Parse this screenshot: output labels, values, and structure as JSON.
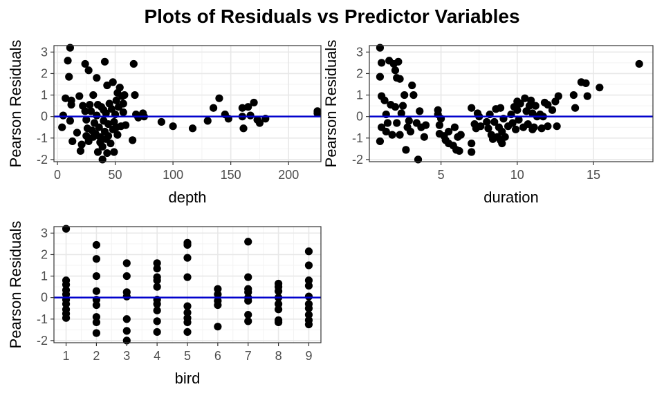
{
  "title": "Plots of Residuals vs Predictor Variables",
  "chart_data": [
    {
      "type": "scatter",
      "xlabel": "depth",
      "ylabel": "Pearson Residuals",
      "xlim": [
        -3,
        228
      ],
      "ylim": [
        -2.1,
        3.3
      ],
      "xticks": [
        0,
        50,
        100,
        150,
        200
      ],
      "yticks": [
        -2,
        -1,
        0,
        1,
        2,
        3
      ],
      "grid": true,
      "reference_line": {
        "y": 0,
        "color": "#0000cc"
      },
      "points": [
        [
          5,
          0.05
        ],
        [
          7,
          0.85
        ],
        [
          4,
          -0.5
        ],
        [
          9,
          2.6
        ],
        [
          11,
          3.2
        ],
        [
          10,
          1.85
        ],
        [
          12,
          0.75
        ],
        [
          12,
          0.55
        ],
        [
          11,
          -0.2
        ],
        [
          13,
          -1.15
        ],
        [
          17,
          -0.75
        ],
        [
          19,
          0.95
        ],
        [
          20,
          -1.6
        ],
        [
          21,
          -1.3
        ],
        [
          22,
          0.5
        ],
        [
          24,
          2.45
        ],
        [
          24,
          0.25
        ],
        [
          25,
          -0.15
        ],
        [
          25,
          -0.9
        ],
        [
          26,
          -0.55
        ],
        [
          27,
          2.15
        ],
        [
          27,
          -1.15
        ],
        [
          28,
          0.55
        ],
        [
          29,
          0.25
        ],
        [
          30,
          -0.65
        ],
        [
          31,
          -0.95
        ],
        [
          31,
          1.0
        ],
        [
          32,
          -0.3
        ],
        [
          33,
          -0.8
        ],
        [
          34,
          1.8
        ],
        [
          34,
          0.05
        ],
        [
          35,
          -1.65
        ],
        [
          35,
          0.55
        ],
        [
          36,
          -0.5
        ],
        [
          37,
          -0.95
        ],
        [
          37,
          -1.2
        ],
        [
          38,
          0.45
        ],
        [
          39,
          -2.0
        ],
        [
          39,
          -1.4
        ],
        [
          40,
          0.3
        ],
        [
          40,
          -0.2
        ],
        [
          41,
          2.55
        ],
        [
          41,
          -0.7
        ],
        [
          42,
          -1.05
        ],
        [
          42,
          0.15
        ],
        [
          43,
          1.45
        ],
        [
          43,
          -1.7
        ],
        [
          44,
          -0.35
        ],
        [
          44,
          -0.9
        ],
        [
          45,
          0.6
        ],
        [
          46,
          -1.25
        ],
        [
          47,
          0.35
        ],
        [
          48,
          1.6
        ],
        [
          48,
          -0.6
        ],
        [
          49,
          -0.25
        ],
        [
          49,
          -1.65
        ],
        [
          50,
          0.1
        ],
        [
          51,
          0.75
        ],
        [
          51,
          -0.5
        ],
        [
          52,
          1.1
        ],
        [
          52,
          -0.85
        ],
        [
          53,
          0.45
        ],
        [
          54,
          1.35
        ],
        [
          55,
          -0.45
        ],
        [
          56,
          0.95
        ],
        [
          57,
          0.6
        ],
        [
          57,
          0.2
        ],
        [
          58,
          1.0
        ],
        [
          59,
          -0.4
        ],
        [
          65,
          -1.1
        ],
        [
          66,
          2.45
        ],
        [
          67,
          1.0
        ],
        [
          68,
          0.1
        ],
        [
          70,
          -0.05
        ],
        [
          74,
          0.15
        ],
        [
          75,
          0.0
        ],
        [
          90,
          -0.25
        ],
        [
          100,
          -0.45
        ],
        [
          117,
          -0.55
        ],
        [
          130,
          -0.2
        ],
        [
          135,
          0.4
        ],
        [
          140,
          0.85
        ],
        [
          145,
          0.1
        ],
        [
          148,
          -0.1
        ],
        [
          160,
          0.4
        ],
        [
          160,
          0.0
        ],
        [
          161,
          -0.55
        ],
        [
          165,
          0.45
        ],
        [
          167,
          0.05
        ],
        [
          170,
          0.65
        ],
        [
          173,
          -0.15
        ],
        [
          175,
          -0.3
        ],
        [
          180,
          -0.1
        ],
        [
          225,
          0.15
        ],
        [
          225,
          0.25
        ]
      ]
    },
    {
      "type": "scatter",
      "xlabel": "duration",
      "ylabel": "Pearson Residuals",
      "xlim": [
        0.3,
        18.9
      ],
      "ylim": [
        -2.1,
        3.3
      ],
      "xticks": [
        5,
        10,
        15
      ],
      "yticks": [
        -2,
        -1,
        0,
        1,
        2,
        3
      ],
      "grid": true,
      "reference_line": {
        "y": 0,
        "color": "#0000cc"
      },
      "points": [
        [
          1.0,
          3.2
        ],
        [
          1.0,
          1.85
        ],
        [
          1.1,
          2.5
        ],
        [
          1.1,
          -0.5
        ],
        [
          1.0,
          -1.15
        ],
        [
          1.1,
          0.95
        ],
        [
          1.3,
          0.75
        ],
        [
          1.4,
          0.1
        ],
        [
          1.4,
          -0.7
        ],
        [
          1.5,
          -0.3
        ],
        [
          1.6,
          2.6
        ],
        [
          1.7,
          0.55
        ],
        [
          1.8,
          -0.85
        ],
        [
          1.9,
          2.45
        ],
        [
          2.0,
          2.15
        ],
        [
          2.0,
          0.45
        ],
        [
          2.1,
          1.8
        ],
        [
          2.1,
          -0.3
        ],
        [
          2.2,
          2.55
        ],
        [
          2.3,
          1.75
        ],
        [
          2.3,
          -0.85
        ],
        [
          2.4,
          0.15
        ],
        [
          2.5,
          0.5
        ],
        [
          2.6,
          1.0
        ],
        [
          2.7,
          -1.55
        ],
        [
          2.8,
          -0.5
        ],
        [
          2.9,
          -0.2
        ],
        [
          3.0,
          -0.7
        ],
        [
          3.1,
          1.45
        ],
        [
          3.2,
          1.0
        ],
        [
          3.4,
          -0.3
        ],
        [
          3.5,
          -2.0
        ],
        [
          3.6,
          0.25
        ],
        [
          3.7,
          -0.5
        ],
        [
          3.9,
          -0.95
        ],
        [
          4.0,
          -0.4
        ],
        [
          4.8,
          0.3
        ],
        [
          4.8,
          0.1
        ],
        [
          4.9,
          -0.4
        ],
        [
          4.9,
          -0.8
        ],
        [
          5.0,
          -0.1
        ],
        [
          5.2,
          -0.9
        ],
        [
          5.3,
          -1.1
        ],
        [
          5.5,
          -1.25
        ],
        [
          5.5,
          -0.7
        ],
        [
          5.8,
          -1.35
        ],
        [
          5.9,
          -0.5
        ],
        [
          6.0,
          -1.55
        ],
        [
          6.1,
          -0.95
        ],
        [
          6.2,
          -1.6
        ],
        [
          6.3,
          -0.85
        ],
        [
          7.0,
          0.4
        ],
        [
          7.0,
          -1.25
        ],
        [
          7.0,
          -1.65
        ],
        [
          7.2,
          -0.35
        ],
        [
          7.3,
          -0.55
        ],
        [
          7.4,
          0.15
        ],
        [
          7.5,
          0.0
        ],
        [
          7.6,
          -0.45
        ],
        [
          8.0,
          -0.25
        ],
        [
          8.1,
          -0.55
        ],
        [
          8.2,
          0.1
        ],
        [
          8.3,
          -0.85
        ],
        [
          8.4,
          -1.05
        ],
        [
          8.5,
          -0.25
        ],
        [
          8.6,
          0.35
        ],
        [
          8.7,
          -0.95
        ],
        [
          8.8,
          -0.5
        ],
        [
          8.9,
          -1.1
        ],
        [
          8.9,
          0.4
        ],
        [
          9.0,
          -1.25
        ],
        [
          9.0,
          -0.7
        ],
        [
          9.1,
          -0.1
        ],
        [
          9.2,
          -0.95
        ],
        [
          9.4,
          -0.45
        ],
        [
          9.6,
          0.1
        ],
        [
          9.7,
          -0.3
        ],
        [
          9.8,
          0.45
        ],
        [
          9.9,
          -0.6
        ],
        [
          10.0,
          0.3
        ],
        [
          10.0,
          0.7
        ],
        [
          10.1,
          -0.15
        ],
        [
          10.2,
          0.6
        ],
        [
          10.4,
          -0.5
        ],
        [
          10.5,
          0.85
        ],
        [
          10.6,
          0.25
        ],
        [
          10.7,
          -0.35
        ],
        [
          10.8,
          0.5
        ],
        [
          10.9,
          0.75
        ],
        [
          11.0,
          -0.6
        ],
        [
          11.0,
          0.15
        ],
        [
          11.1,
          -0.5
        ],
        [
          11.2,
          0.5
        ],
        [
          11.3,
          0.0
        ],
        [
          11.5,
          0.1
        ],
        [
          11.6,
          -0.55
        ],
        [
          11.7,
          0.0
        ],
        [
          11.8,
          0.65
        ],
        [
          12.0,
          -0.45
        ],
        [
          12.0,
          0.55
        ],
        [
          12.3,
          0.3
        ],
        [
          12.5,
          0.7
        ],
        [
          12.6,
          -0.45
        ],
        [
          12.7,
          0.95
        ],
        [
          13.7,
          1.0
        ],
        [
          13.8,
          0.4
        ],
        [
          14.2,
          1.6
        ],
        [
          14.5,
          1.55
        ],
        [
          14.6,
          0.95
        ],
        [
          15.4,
          1.35
        ],
        [
          18.0,
          2.45
        ]
      ]
    },
    {
      "type": "scatter",
      "xlabel": "bird",
      "ylabel": "Pearson Residuals",
      "xlim": [
        0.6,
        9.4
      ],
      "ylim": [
        -2.1,
        3.3
      ],
      "xticks": [
        1,
        2,
        3,
        4,
        5,
        6,
        7,
        8,
        9
      ],
      "yticks": [
        -2,
        -1,
        0,
        1,
        2,
        3
      ],
      "grid": true,
      "reference_line": {
        "y": 0,
        "color": "#0000cc"
      },
      "points": [
        [
          1,
          3.2
        ],
        [
          1,
          0.8
        ],
        [
          1,
          0.6
        ],
        [
          1,
          0.35
        ],
        [
          1,
          0.15
        ],
        [
          1,
          -0.1
        ],
        [
          1,
          -0.3
        ],
        [
          1,
          -0.55
        ],
        [
          1,
          -0.75
        ],
        [
          1,
          -0.95
        ],
        [
          2,
          2.45
        ],
        [
          2,
          1.8
        ],
        [
          2,
          1.0
        ],
        [
          2,
          0.3
        ],
        [
          2,
          -0.1
        ],
        [
          2,
          -0.35
        ],
        [
          2,
          -0.9
        ],
        [
          2,
          -1.15
        ],
        [
          2,
          -1.65
        ],
        [
          3,
          1.6
        ],
        [
          3,
          1.0
        ],
        [
          3,
          0.25
        ],
        [
          3,
          0.05
        ],
        [
          3,
          -1.0
        ],
        [
          3,
          -1.55
        ],
        [
          3,
          -2.0
        ],
        [
          4,
          1.6
        ],
        [
          4,
          1.35
        ],
        [
          4,
          0.95
        ],
        [
          4,
          0.8
        ],
        [
          4,
          0.5
        ],
        [
          4,
          -0.1
        ],
        [
          4,
          -0.3
        ],
        [
          4,
          -0.6
        ],
        [
          4,
          -1.1
        ],
        [
          4,
          -1.6
        ],
        [
          5,
          2.55
        ],
        [
          5,
          2.45
        ],
        [
          5,
          1.85
        ],
        [
          5,
          0.95
        ],
        [
          5,
          -0.4
        ],
        [
          5,
          -0.7
        ],
        [
          5,
          -0.95
        ],
        [
          5,
          -1.15
        ],
        [
          5,
          -1.6
        ],
        [
          6,
          0.4
        ],
        [
          6,
          0.15
        ],
        [
          6,
          -0.15
        ],
        [
          6,
          -0.35
        ],
        [
          6,
          -1.35
        ],
        [
          7,
          2.6
        ],
        [
          7,
          0.95
        ],
        [
          7,
          0.4
        ],
        [
          7,
          0.25
        ],
        [
          7,
          0.0
        ],
        [
          7,
          -0.15
        ],
        [
          7,
          -0.8
        ],
        [
          7,
          -1.1
        ],
        [
          8,
          0.65
        ],
        [
          8,
          0.5
        ],
        [
          8,
          0.3
        ],
        [
          8,
          0.0
        ],
        [
          8,
          -0.3
        ],
        [
          8,
          -0.55
        ],
        [
          8,
          -1.05
        ],
        [
          8,
          -1.15
        ],
        [
          9,
          2.15
        ],
        [
          9,
          1.5
        ],
        [
          9,
          0.8
        ],
        [
          9,
          0.55
        ],
        [
          9,
          0.05
        ],
        [
          9,
          -0.3
        ],
        [
          9,
          -0.5
        ],
        [
          9,
          -0.8
        ],
        [
          9,
          -1.05
        ],
        [
          9,
          -1.25
        ]
      ]
    }
  ]
}
